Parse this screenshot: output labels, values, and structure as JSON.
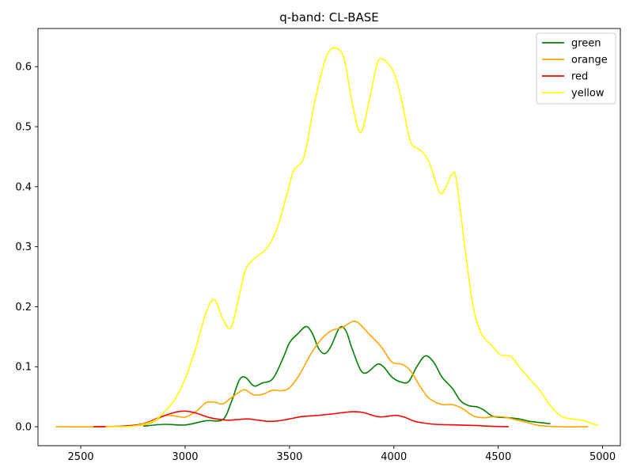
{
  "chart_data": {
    "type": "line",
    "title": "q-band: CL-BASE",
    "xlabel": "",
    "ylabel": "",
    "xlim": [
      2295,
      5085
    ],
    "ylim": [
      -0.0316,
      0.6636
    ],
    "x_ticks": [
      2500,
      3000,
      3500,
      4000,
      4500,
      5000
    ],
    "x_tick_labels": [
      "2500",
      "3000",
      "3500",
      "4000",
      "4500",
      "5000"
    ],
    "y_ticks": [
      0.0,
      0.1,
      0.2,
      0.3,
      0.4,
      0.5,
      0.6
    ],
    "y_tick_labels": [
      "0.0",
      "0.1",
      "0.2",
      "0.3",
      "0.4",
      "0.5",
      "0.6"
    ],
    "grid": false,
    "legend_position": "top-right",
    "series": [
      {
        "name": "green",
        "color": "#008000",
        "points": [
          [
            2800,
            0.001
          ],
          [
            2900,
            0.004
          ],
          [
            3000,
            0.003
          ],
          [
            3100,
            0.01
          ],
          [
            3180,
            0.012
          ],
          [
            3220,
            0.04
          ],
          [
            3260,
            0.078
          ],
          [
            3290,
            0.082
          ],
          [
            3330,
            0.068
          ],
          [
            3370,
            0.073
          ],
          [
            3420,
            0.08
          ],
          [
            3470,
            0.115
          ],
          [
            3500,
            0.14
          ],
          [
            3540,
            0.155
          ],
          [
            3580,
            0.167
          ],
          [
            3610,
            0.155
          ],
          [
            3640,
            0.13
          ],
          [
            3670,
            0.122
          ],
          [
            3700,
            0.135
          ],
          [
            3740,
            0.165
          ],
          [
            3770,
            0.16
          ],
          [
            3800,
            0.13
          ],
          [
            3840,
            0.095
          ],
          [
            3870,
            0.09
          ],
          [
            3920,
            0.104
          ],
          [
            3950,
            0.1
          ],
          [
            3990,
            0.083
          ],
          [
            4030,
            0.075
          ],
          [
            4070,
            0.075
          ],
          [
            4110,
            0.1
          ],
          [
            4150,
            0.118
          ],
          [
            4190,
            0.108
          ],
          [
            4230,
            0.083
          ],
          [
            4280,
            0.064
          ],
          [
            4320,
            0.043
          ],
          [
            4360,
            0.035
          ],
          [
            4400,
            0.033
          ],
          [
            4430,
            0.028
          ],
          [
            4470,
            0.018
          ],
          [
            4500,
            0.016
          ],
          [
            4550,
            0.015
          ],
          [
            4600,
            0.013
          ],
          [
            4650,
            0.009
          ],
          [
            4700,
            0.007
          ],
          [
            4750,
            0.005
          ]
        ]
      },
      {
        "name": "orange",
        "color": "#ffa500",
        "points": [
          [
            2380,
            0.0
          ],
          [
            2600,
            0.0
          ],
          [
            2800,
            0.003
          ],
          [
            2900,
            0.018
          ],
          [
            2950,
            0.018
          ],
          [
            3000,
            0.016
          ],
          [
            3050,
            0.025
          ],
          [
            3100,
            0.04
          ],
          [
            3140,
            0.041
          ],
          [
            3180,
            0.038
          ],
          [
            3220,
            0.048
          ],
          [
            3270,
            0.06
          ],
          [
            3290,
            0.061
          ],
          [
            3330,
            0.053
          ],
          [
            3370,
            0.054
          ],
          [
            3420,
            0.061
          ],
          [
            3460,
            0.06
          ],
          [
            3500,
            0.065
          ],
          [
            3550,
            0.088
          ],
          [
            3600,
            0.12
          ],
          [
            3650,
            0.145
          ],
          [
            3700,
            0.16
          ],
          [
            3750,
            0.165
          ],
          [
            3800,
            0.175
          ],
          [
            3830,
            0.173
          ],
          [
            3880,
            0.155
          ],
          [
            3940,
            0.133
          ],
          [
            3990,
            0.108
          ],
          [
            4040,
            0.104
          ],
          [
            4080,
            0.093
          ],
          [
            4130,
            0.065
          ],
          [
            4170,
            0.047
          ],
          [
            4230,
            0.037
          ],
          [
            4280,
            0.037
          ],
          [
            4330,
            0.03
          ],
          [
            4380,
            0.018
          ],
          [
            4430,
            0.015
          ],
          [
            4480,
            0.017
          ],
          [
            4530,
            0.016
          ],
          [
            4580,
            0.012
          ],
          [
            4640,
            0.007
          ],
          [
            4700,
            0.002
          ],
          [
            4800,
            0.0
          ],
          [
            4930,
            0.0
          ]
        ]
      },
      {
        "name": "red",
        "color": "#ff0000",
        "points": [
          [
            2560,
            0.0
          ],
          [
            2700,
            0.001
          ],
          [
            2800,
            0.005
          ],
          [
            2880,
            0.016
          ],
          [
            2950,
            0.024
          ],
          [
            3000,
            0.026
          ],
          [
            3050,
            0.023
          ],
          [
            3120,
            0.015
          ],
          [
            3200,
            0.011
          ],
          [
            3250,
            0.012
          ],
          [
            3300,
            0.013
          ],
          [
            3350,
            0.011
          ],
          [
            3400,
            0.009
          ],
          [
            3450,
            0.01
          ],
          [
            3500,
            0.013
          ],
          [
            3560,
            0.017
          ],
          [
            3640,
            0.019
          ],
          [
            3720,
            0.022
          ],
          [
            3800,
            0.025
          ],
          [
            3850,
            0.024
          ],
          [
            3920,
            0.017
          ],
          [
            3960,
            0.017
          ],
          [
            4010,
            0.019
          ],
          [
            4050,
            0.016
          ],
          [
            4100,
            0.009
          ],
          [
            4150,
            0.006
          ],
          [
            4200,
            0.004
          ],
          [
            4300,
            0.003
          ],
          [
            4400,
            0.002
          ],
          [
            4450,
            0.001
          ],
          [
            4550,
            0.0
          ]
        ]
      },
      {
        "name": "yellow",
        "color": "#ffff00",
        "points": [
          [
            2620,
            0.0
          ],
          [
            2750,
            0.001
          ],
          [
            2850,
            0.01
          ],
          [
            2900,
            0.025
          ],
          [
            2950,
            0.045
          ],
          [
            3000,
            0.08
          ],
          [
            3050,
            0.13
          ],
          [
            3100,
            0.19
          ],
          [
            3140,
            0.212
          ],
          [
            3180,
            0.18
          ],
          [
            3220,
            0.165
          ],
          [
            3260,
            0.22
          ],
          [
            3290,
            0.262
          ],
          [
            3330,
            0.28
          ],
          [
            3390,
            0.297
          ],
          [
            3440,
            0.33
          ],
          [
            3490,
            0.39
          ],
          [
            3520,
            0.427
          ],
          [
            3570,
            0.45
          ],
          [
            3620,
            0.54
          ],
          [
            3670,
            0.61
          ],
          [
            3710,
            0.631
          ],
          [
            3760,
            0.615
          ],
          [
            3800,
            0.54
          ],
          [
            3840,
            0.49
          ],
          [
            3880,
            0.54
          ],
          [
            3920,
            0.605
          ],
          [
            3950,
            0.612
          ],
          [
            4000,
            0.59
          ],
          [
            4040,
            0.54
          ],
          [
            4080,
            0.475
          ],
          [
            4130,
            0.46
          ],
          [
            4170,
            0.44
          ],
          [
            4220,
            0.39
          ],
          [
            4250,
            0.4
          ],
          [
            4280,
            0.422
          ],
          [
            4300,
            0.41
          ],
          [
            4340,
            0.3
          ],
          [
            4380,
            0.2
          ],
          [
            4420,
            0.155
          ],
          [
            4470,
            0.135
          ],
          [
            4510,
            0.12
          ],
          [
            4560,
            0.117
          ],
          [
            4600,
            0.1
          ],
          [
            4650,
            0.08
          ],
          [
            4700,
            0.06
          ],
          [
            4750,
            0.035
          ],
          [
            4800,
            0.018
          ],
          [
            4850,
            0.013
          ],
          [
            4900,
            0.011
          ],
          [
            4960,
            0.004
          ],
          [
            4980,
            0.003
          ]
        ]
      }
    ]
  }
}
